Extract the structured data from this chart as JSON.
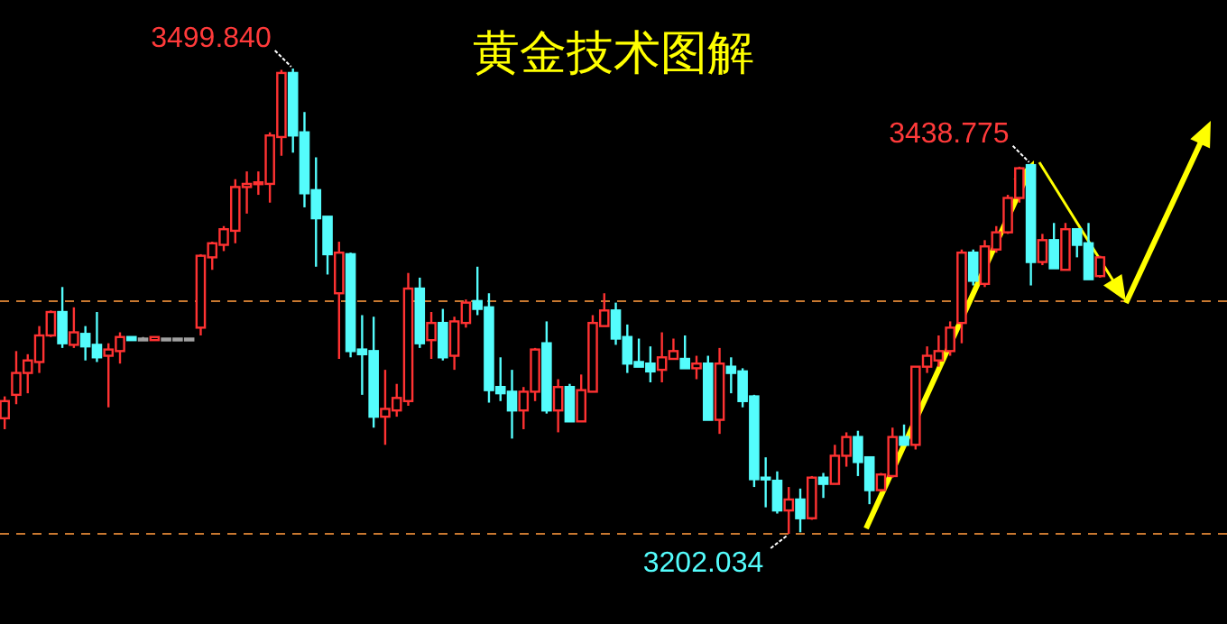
{
  "chart_data": {
    "type": "candlestick",
    "title": "黄金技术图解",
    "categories": [
      null,
      null,
      null,
      null,
      null,
      null,
      null,
      null,
      null,
      null,
      null,
      null,
      null,
      null,
      null,
      null,
      null,
      null,
      null,
      null,
      null,
      null,
      null,
      null,
      null,
      null,
      null,
      null,
      null,
      null,
      null,
      null,
      null,
      null,
      null,
      null,
      null,
      null,
      null,
      null,
      null,
      null,
      null,
      null,
      null,
      null,
      null,
      null,
      null,
      null,
      null,
      null,
      null,
      null,
      null,
      null,
      null,
      null,
      null,
      null,
      null,
      null,
      null,
      null,
      null,
      null,
      null,
      null,
      null,
      null,
      null,
      null,
      null,
      null,
      null,
      null,
      null,
      null,
      null,
      null,
      null,
      null,
      null,
      null,
      null,
      null,
      null,
      null,
      null,
      null,
      null,
      null,
      null,
      null,
      null,
      null
    ],
    "ohlc": [
      [
        3276,
        3290,
        3269,
        3287
      ],
      [
        3291,
        3319,
        3285,
        3305
      ],
      [
        3305,
        3317,
        3292,
        3313
      ],
      [
        3312,
        3335,
        3305,
        3329
      ],
      [
        3329,
        3345,
        3328,
        3344
      ],
      [
        3344,
        3360,
        3321,
        3324
      ],
      [
        3323,
        3347,
        3321,
        3331
      ],
      [
        3330,
        3335,
        3313,
        3322
      ],
      [
        3323,
        3344,
        3312,
        3315
      ],
      [
        3316,
        3324,
        3283,
        3320
      ],
      [
        3319,
        3331,
        3311,
        3328
      ],
      [
        3328,
        3328,
        3326,
        3326
      ],
      [
        3327,
        3328,
        3327,
        3327
      ],
      [
        3326,
        3328,
        3326,
        3328
      ],
      [
        3327,
        3327,
        3327,
        3327
      ],
      [
        3327,
        3327,
        3327,
        3327
      ],
      [
        3327,
        3327,
        3327,
        3327
      ],
      [
        3334,
        3381,
        3329,
        3380
      ],
      [
        3379,
        3389,
        3371,
        3388
      ],
      [
        3387,
        3399,
        3383,
        3397
      ],
      [
        3396,
        3429,
        3388,
        3424
      ],
      [
        3424,
        3434,
        3407,
        3426
      ],
      [
        3426,
        3434,
        3419,
        3427
      ],
      [
        3426,
        3459,
        3414,
        3457
      ],
      [
        3456,
        3499,
        3444,
        3497
      ],
      [
        3497,
        3499.84,
        3446,
        3457
      ],
      [
        3459,
        3472,
        3411,
        3420
      ],
      [
        3422,
        3443,
        3373,
        3404
      ],
      [
        3405,
        3405,
        3368,
        3381
      ],
      [
        3356,
        3389,
        3314,
        3382
      ],
      [
        3381,
        3382,
        3315,
        3319
      ],
      [
        3320,
        3342,
        3291,
        3317
      ],
      [
        3319,
        3341,
        3270,
        3277
      ],
      [
        3277,
        3307,
        3259,
        3282
      ],
      [
        3281,
        3298,
        3277,
        3289
      ],
      [
        3287,
        3369,
        3284,
        3359
      ],
      [
        3359,
        3366,
        3321,
        3324
      ],
      [
        3326,
        3344,
        3314,
        3337
      ],
      [
        3337,
        3346,
        3313,
        3315
      ],
      [
        3316,
        3341,
        3307,
        3338
      ],
      [
        3337,
        3352,
        3334,
        3350
      ],
      [
        3351,
        3373,
        3342,
        3346
      ],
      [
        3347,
        3356,
        3286,
        3294
      ],
      [
        3296,
        3315,
        3287,
        3292
      ],
      [
        3293,
        3307,
        3263,
        3281
      ],
      [
        3281,
        3296,
        3269,
        3293
      ],
      [
        3293,
        3321,
        3287,
        3320
      ],
      [
        3324,
        3338,
        3279,
        3281
      ],
      [
        3281,
        3301,
        3267,
        3296
      ],
      [
        3296,
        3298,
        3274,
        3274
      ],
      [
        3274,
        3304,
        3274,
        3294
      ],
      [
        3293,
        3342,
        3293,
        3337
      ],
      [
        3335,
        3356,
        3335,
        3345
      ],
      [
        3345,
        3350,
        3323,
        3327
      ],
      [
        3328,
        3336,
        3305,
        3311
      ],
      [
        3312,
        3327,
        3309,
        3309
      ],
      [
        3311,
        3322,
        3299,
        3306
      ],
      [
        3307,
        3331,
        3299,
        3315
      ],
      [
        3314,
        3327,
        3314,
        3319
      ],
      [
        3314,
        3329,
        3308,
        3308
      ],
      [
        3308,
        3316,
        3301,
        3311
      ],
      [
        3311,
        3316,
        3275,
        3275
      ],
      [
        3275,
        3321,
        3266,
        3311
      ],
      [
        3309,
        3315,
        3292,
        3305
      ],
      [
        3306,
        3308,
        3283,
        3287
      ],
      [
        3290,
        3291,
        3232,
        3237
      ],
      [
        3238,
        3251,
        3219,
        3237
      ],
      [
        3236,
        3242,
        3215,
        3217
      ],
      [
        3217,
        3232,
        3202.034,
        3224
      ],
      [
        3224,
        3231,
        3203,
        3212
      ],
      [
        3212,
        3239,
        3211,
        3238
      ],
      [
        3238,
        3241,
        3225,
        3234
      ],
      [
        3234,
        3259,
        3234,
        3252
      ],
      [
        3252,
        3267,
        3245,
        3264
      ],
      [
        3264,
        3268,
        3239,
        3248
      ],
      [
        3251,
        3251,
        3221,
        3230
      ],
      [
        3230,
        3241,
        3229,
        3240
      ],
      [
        3239,
        3270,
        3238,
        3264
      ],
      [
        3264,
        3272,
        3259,
        3259
      ],
      [
        3259,
        3309,
        3256,
        3309
      ],
      [
        3309,
        3322,
        3305,
        3316
      ],
      [
        3313,
        3329,
        3309,
        3319
      ],
      [
        3319,
        3338,
        3316,
        3334
      ],
      [
        3337,
        3384,
        3324,
        3382
      ],
      [
        3382,
        3384,
        3361,
        3364
      ],
      [
        3362,
        3390,
        3360,
        3386
      ],
      [
        3384,
        3399,
        3382,
        3395
      ],
      [
        3395,
        3419,
        3394,
        3417
      ],
      [
        3417,
        3437,
        3414,
        3436
      ],
      [
        3438,
        3438.775,
        3361,
        3376
      ],
      [
        3376,
        3394,
        3374,
        3390
      ],
      [
        3390,
        3401,
        3372,
        3372
      ],
      [
        3371,
        3401,
        3371,
        3397
      ],
      [
        3397,
        3397,
        3379,
        3387
      ],
      [
        3388,
        3401,
        3365,
        3365
      ],
      [
        3367,
        3380,
        3366,
        3379
      ]
    ],
    "colors": [
      "#ff3232",
      "#ff3232",
      "#ff3232",
      "#ff3232",
      "#ff3232",
      "#54fcfc",
      "#ff3232",
      "#54fcfc",
      "#54fcfc",
      "#ff3232",
      "#ff3232",
      "#54fcfc",
      "#a0a0a0",
      "#ff3232",
      "#a0a0a0",
      "#a0a0a0",
      "#a0a0a0",
      "#ff3232",
      "#ff3232",
      "#ff3232",
      "#ff3232",
      "#ff3232",
      "#ff3232",
      "#ff3232",
      "#ff3232",
      "#54fcfc",
      "#54fcfc",
      "#54fcfc",
      "#54fcfc",
      "#ff3232",
      "#54fcfc",
      "#54fcfc",
      "#54fcfc",
      "#ff3232",
      "#ff3232",
      "#ff3232",
      "#54fcfc",
      "#ff3232",
      "#54fcfc",
      "#ff3232",
      "#ff3232",
      "#54fcfc",
      "#54fcfc",
      "#54fcfc",
      "#54fcfc",
      "#ff3232",
      "#ff3232",
      "#54fcfc",
      "#ff3232",
      "#54fcfc",
      "#ff3232",
      "#ff3232",
      "#ff3232",
      "#54fcfc",
      "#54fcfc",
      "#54fcfc",
      "#54fcfc",
      "#ff3232",
      "#ff3232",
      "#54fcfc",
      "#ff3232",
      "#54fcfc",
      "#ff3232",
      "#54fcfc",
      "#54fcfc",
      "#54fcfc",
      "#54fcfc",
      "#54fcfc",
      "#ff3232",
      "#54fcfc",
      "#ff3232",
      "#54fcfc",
      "#ff3232",
      "#ff3232",
      "#54fcfc",
      "#54fcfc",
      "#ff3232",
      "#ff3232",
      "#54fcfc",
      "#ff3232",
      "#ff3232",
      "#ff3232",
      "#ff3232",
      "#ff3232",
      "#54fcfc",
      "#ff3232",
      "#ff3232",
      "#ff3232",
      "#ff3232",
      "#54fcfc",
      "#ff3232",
      "#54fcfc",
      "#ff3232",
      "#54fcfc",
      "#54fcfc",
      "#ff3232"
    ],
    "ref_lines": [
      {
        "axis": "y",
        "value": 3351,
        "color": "#c87830",
        "line_style": "dashed"
      },
      {
        "axis": "y",
        "value": 3202.034,
        "color": "#c87830",
        "line_style": "dashed"
      }
    ],
    "annotations": [
      "3499.840",
      "3438.775",
      "3202.034"
    ]
  }
}
